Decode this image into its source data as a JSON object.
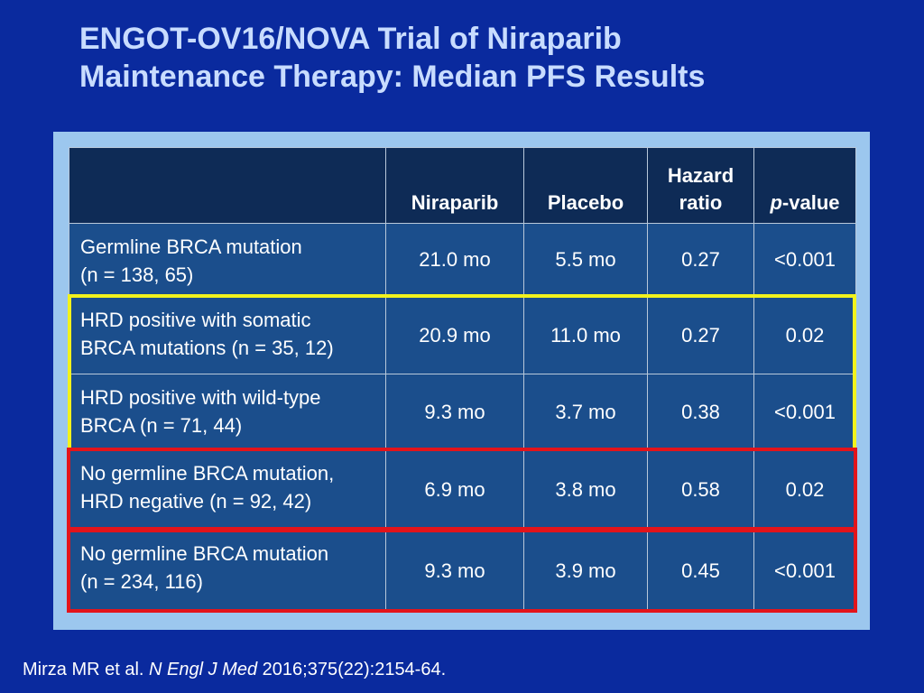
{
  "title": {
    "line1": "ENGOT-OV16/NOVA Trial of Niraparib",
    "line2": "Maintenance Therapy: Median PFS Results"
  },
  "table": {
    "headers": {
      "col1": "",
      "col2": "Niraparib",
      "col3": "Placebo",
      "col4_line1": "Hazard",
      "col4_line2": "ratio",
      "col5_italic": "p",
      "col5_rest": "-value"
    },
    "rows": [
      {
        "label_line1": "Germline BRCA mutation",
        "label_line2": "(n = 138, 65)",
        "niraparib": "21.0 mo",
        "placebo": "5.5 mo",
        "hazard_ratio": "0.27",
        "p_value": "<0.001"
      },
      {
        "label_line1": "HRD positive with somatic",
        "label_line2": "BRCA mutations (n = 35, 12)",
        "niraparib": "20.9 mo",
        "placebo": "11.0 mo",
        "hazard_ratio": "0.27",
        "p_value": "0.02"
      },
      {
        "label_line1": "HRD positive with wild-type",
        "label_line2": "BRCA (n = 71, 44)",
        "niraparib": "9.3 mo",
        "placebo": "3.7 mo",
        "hazard_ratio": "0.38",
        "p_value": "<0.001"
      },
      {
        "label_line1": "No germline BRCA mutation,",
        "label_line2": "HRD negative (n = 92, 42)",
        "niraparib": "6.9 mo",
        "placebo": "3.8 mo",
        "hazard_ratio": "0.58",
        "p_value": "0.02"
      },
      {
        "label_line1": "No germline BRCA mutation",
        "label_line2": "(n = 234, 116)",
        "niraparib": "9.3 mo",
        "placebo": "3.9 mo",
        "hazard_ratio": "0.45",
        "p_value": "<0.001"
      }
    ]
  },
  "highlights": {
    "yellow": "#f2f21d",
    "red": "#e3141b"
  },
  "colors": {
    "background": "#0a2a9e",
    "title": "#c8dcff",
    "table_header": "#0e2b56",
    "table_body": "#1b4e8c",
    "frame": "#9cc7ee"
  },
  "citation": {
    "authors": "Mirza MR et al. ",
    "journal": "N Engl J Med",
    "details": " 2016;375(22):2154-64."
  }
}
